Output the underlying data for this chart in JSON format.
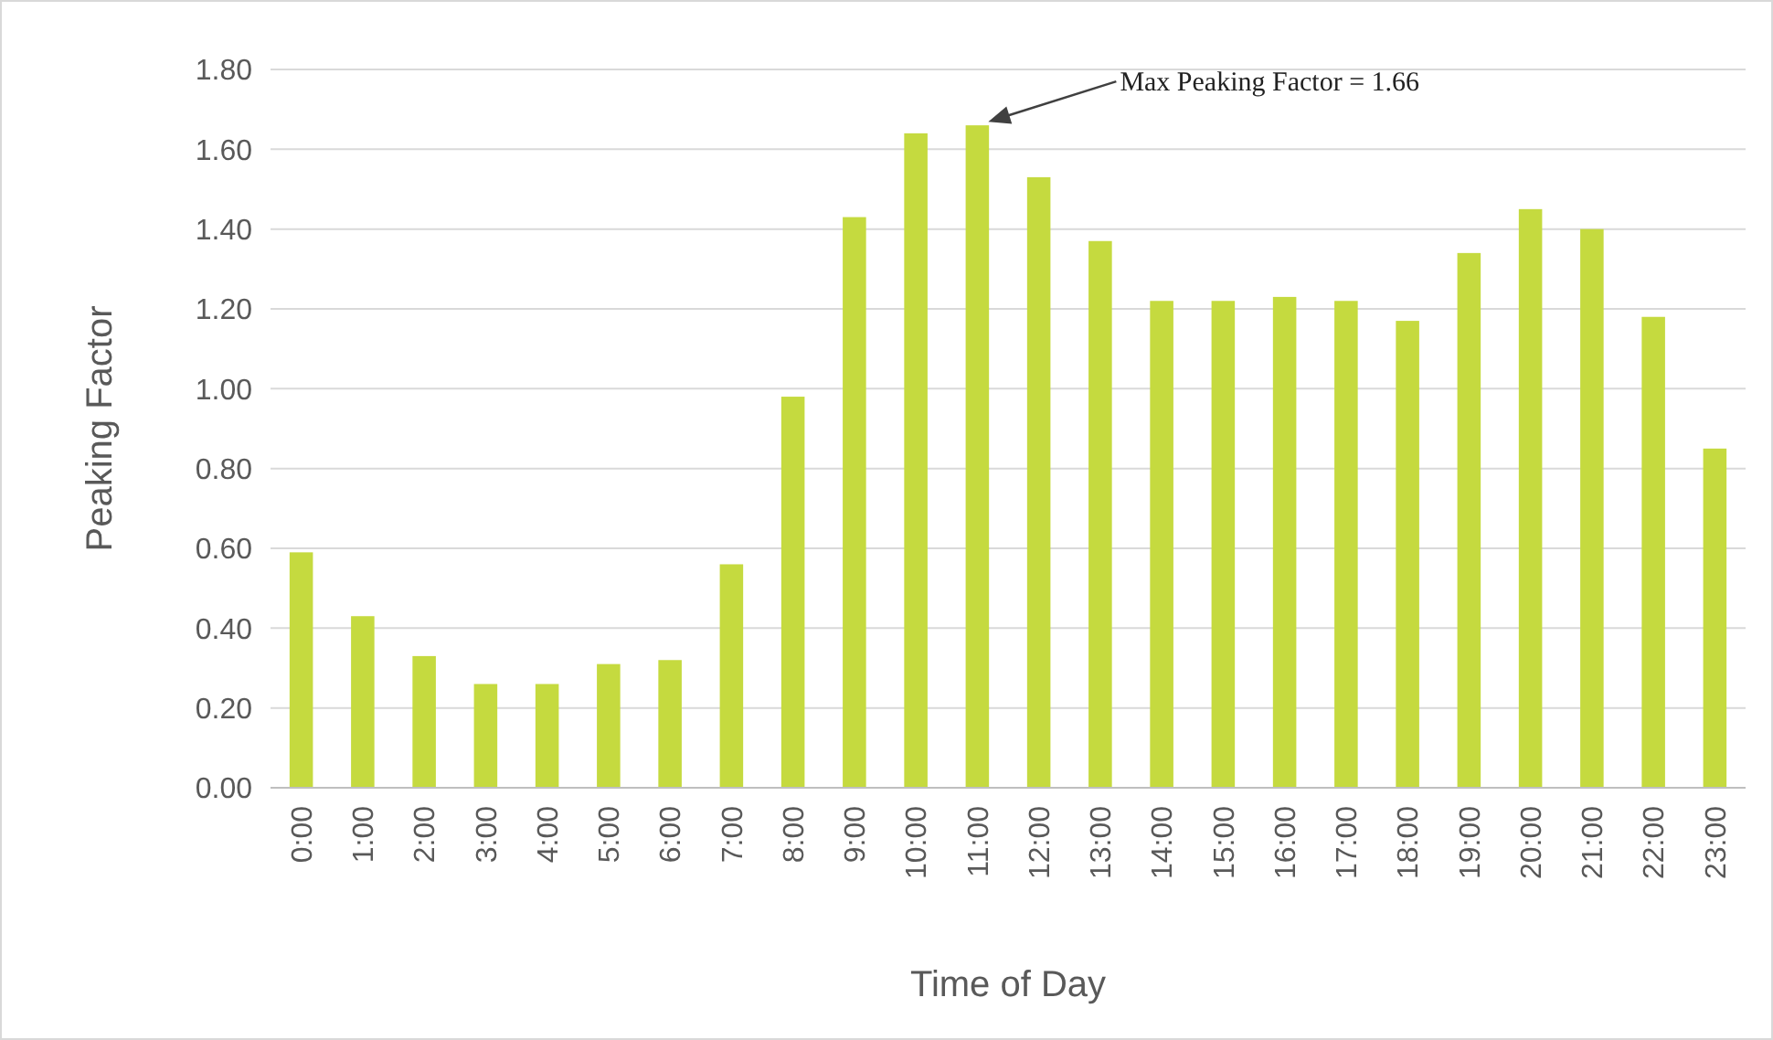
{
  "chart_data": {
    "type": "bar",
    "xlabel": "Time of Day",
    "ylabel": "Peaking Factor",
    "categories": [
      "0:00",
      "1:00",
      "2:00",
      "3:00",
      "4:00",
      "5:00",
      "6:00",
      "7:00",
      "8:00",
      "9:00",
      "10:00",
      "11:00",
      "12:00",
      "13:00",
      "14:00",
      "15:00",
      "16:00",
      "17:00",
      "18:00",
      "19:00",
      "20:00",
      "21:00",
      "22:00",
      "23:00"
    ],
    "values": [
      0.59,
      0.43,
      0.33,
      0.26,
      0.26,
      0.31,
      0.32,
      0.56,
      0.98,
      1.43,
      1.64,
      1.66,
      1.53,
      1.37,
      1.22,
      1.22,
      1.23,
      1.22,
      1.17,
      1.34,
      1.45,
      1.4,
      1.18,
      0.85
    ],
    "color": "#c5da3f",
    "ylim": [
      0,
      1.8
    ],
    "yticks": [
      {
        "value": 0,
        "label": "0.00"
      },
      {
        "value": 0.2,
        "label": "0.20"
      },
      {
        "value": 0.4,
        "label": "0.40"
      },
      {
        "value": 0.6,
        "label": "0.60"
      },
      {
        "value": 0.8,
        "label": "0.80"
      },
      {
        "value": 1,
        "label": "1.00"
      },
      {
        "value": 1.2,
        "label": "1.20"
      },
      {
        "value": 1.4,
        "label": "1.40"
      },
      {
        "value": 1.6,
        "label": "1.60"
      },
      {
        "value": 1.8,
        "label": "1.80"
      }
    ],
    "grid": "y",
    "annotations": [
      "Max Peaking Factor = 1.66"
    ]
  }
}
